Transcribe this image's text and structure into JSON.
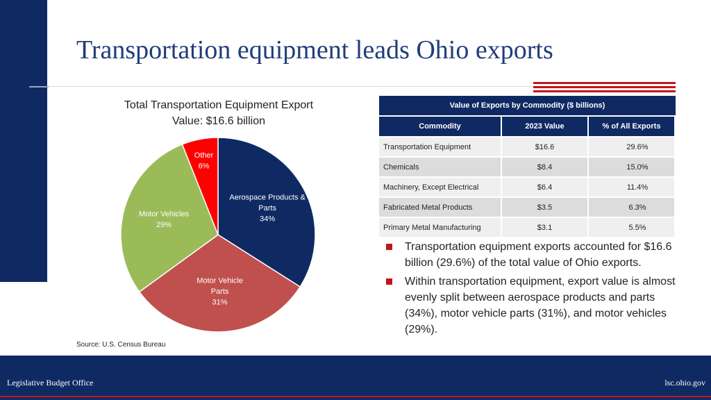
{
  "slide": {
    "title": "Transportation equipment leads Ohio exports"
  },
  "pie": {
    "title_line1": "Total Transportation Equipment Export",
    "title_line2": "Value: $16.6 billion",
    "source": "Source: U.S. Census Bureau"
  },
  "chart_data": {
    "type": "pie",
    "title": "Total Transportation Equipment Export Value: $16.6 billion",
    "slices": [
      {
        "label_lines": [
          "Aerospace Products &",
          "Parts",
          "34%"
        ],
        "value": 34,
        "color": "#0f2a63",
        "text_color": "#ffffff"
      },
      {
        "label_lines": [
          "Motor Vehicle",
          "Parts",
          "31%"
        ],
        "value": 31,
        "color": "#c0504d",
        "text_color": "#ffffff"
      },
      {
        "label_lines": [
          "Motor Vehicles",
          "29%"
        ],
        "value": 29,
        "color": "#9bbb59",
        "text_color": "#ffffff"
      },
      {
        "label_lines": [
          "Other",
          "6%"
        ],
        "value": 6,
        "color": "#ff0000",
        "text_color": "#ffffff"
      }
    ]
  },
  "table": {
    "caption": "Value of Exports by Commodity ($ billions)",
    "headers": [
      "Commodity",
      "2023 Value",
      "% of All Exports"
    ],
    "rows": [
      [
        "Transportation Equipment",
        "$16.6",
        "29.6%"
      ],
      [
        "Chemicals",
        "$8.4",
        "15.0%"
      ],
      [
        "Machinery, Except Electrical",
        "$6.4",
        "11.4%"
      ],
      [
        "Fabricated Metal Products",
        "$3.5",
        "6.3%"
      ],
      [
        "Primary Metal Manufacturing",
        "$3.1",
        "5.5%"
      ]
    ]
  },
  "bullets": [
    "Transportation equipment exports accounted for $16.6 billion (29.6%) of the total value of Ohio exports.",
    "Within transportation equipment, export value is almost evenly split between aerospace products and parts (34%), motor vehicle parts (31%), and motor vehicles (29%)."
  ],
  "footer": {
    "left": "Legislative Budget Office",
    "right": "lsc.ohio.gov"
  },
  "colors": {
    "navy": "#0f2a63",
    "accent_red": "#c0161d",
    "title_blue": "#1f3d7a"
  }
}
